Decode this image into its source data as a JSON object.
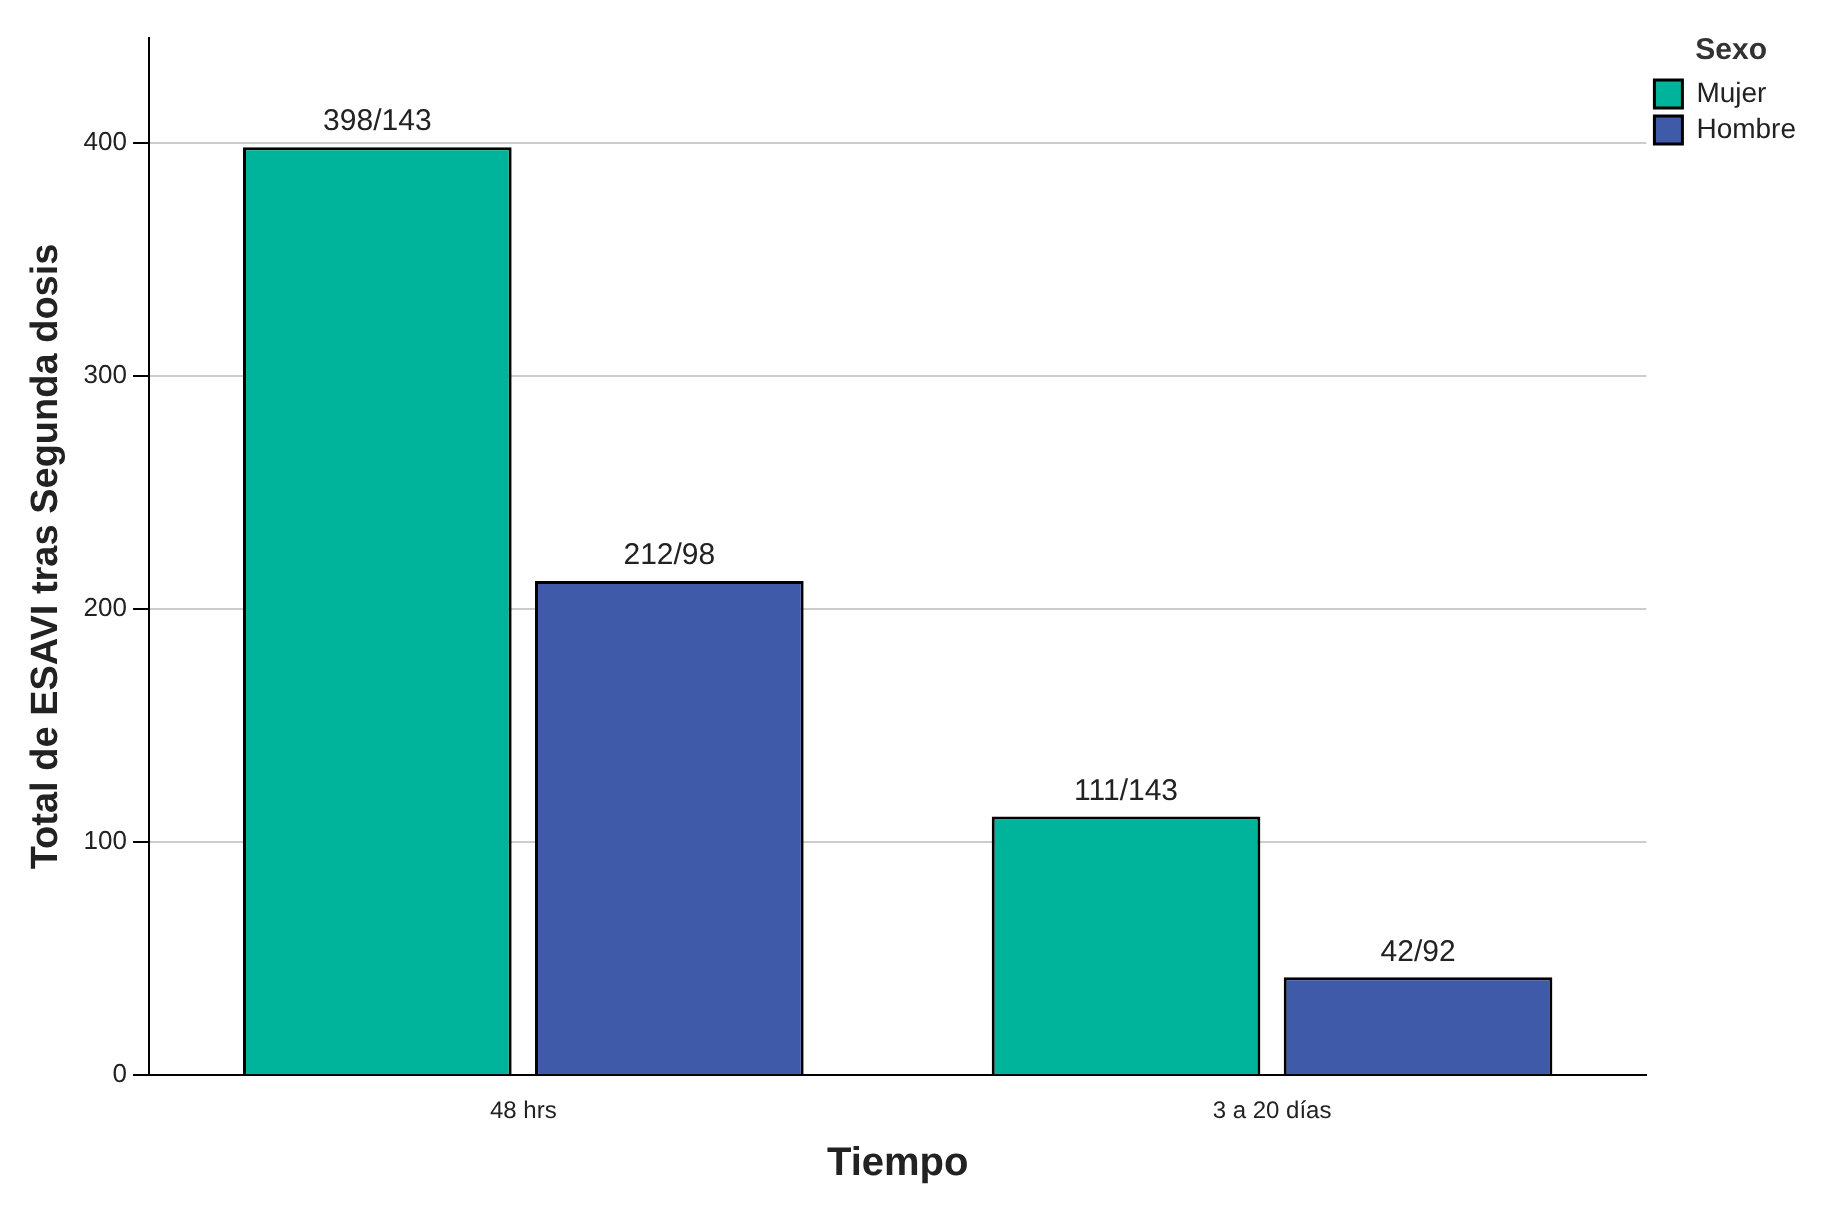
{
  "chart_data": {
    "type": "bar",
    "xlabel": "Tiempo",
    "ylabel": "Total de ESAVI tras Segunda dosis",
    "legend_title": "Sexo",
    "categories": [
      "48 hrs",
      "3 a 20 días"
    ],
    "series": [
      {
        "name": "Mujer",
        "color": "#00b39b",
        "values": [
          398,
          111
        ],
        "value_labels": [
          "398/143",
          "111/143"
        ]
      },
      {
        "name": "Hombre",
        "color": "#3e5aa8",
        "values": [
          212,
          42
        ],
        "value_labels": [
          "212/98",
          "42/92"
        ]
      }
    ],
    "ylim": [
      0,
      445
    ],
    "yticks": [
      0,
      100,
      200,
      300,
      400
    ],
    "grid": "y",
    "legend": "top right"
  }
}
